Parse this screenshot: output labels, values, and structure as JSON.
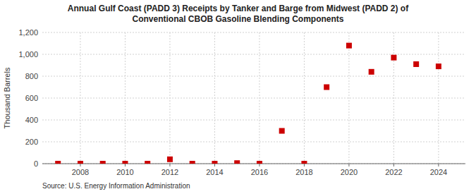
{
  "chart_data": {
    "type": "scatter",
    "title": "Annual Gulf Coast (PADD 3) Receipts by Tanker and Barge from Midwest (PADD 2) of\nConventional CBOB Gasoline Blending Components",
    "ylabel": "Thousand Barrels",
    "source": "Source: U.S. Energy Information Administration",
    "x": [
      2007,
      2008,
      2009,
      2010,
      2011,
      2012,
      2013,
      2014,
      2015,
      2016,
      2017,
      2018,
      2019,
      2020,
      2021,
      2022,
      2023,
      2024
    ],
    "values": [
      0,
      0,
      0,
      0,
      0,
      40,
      0,
      0,
      5,
      0,
      300,
      0,
      700,
      1080,
      840,
      970,
      910,
      890
    ],
    "color": "#cc0000",
    "marker": "square",
    "xlim": [
      2006.3,
      2025.2
    ],
    "xticks": [
      2008,
      2010,
      2012,
      2014,
      2016,
      2018,
      2020,
      2022,
      2024
    ],
    "ylim": [
      0,
      1200
    ],
    "yticks": [
      0,
      200,
      400,
      600,
      800,
      {
        "value": 1000,
        "label": "1,000"
      },
      {
        "value": 1200,
        "label": "1,200"
      }
    ],
    "grid": true
  }
}
